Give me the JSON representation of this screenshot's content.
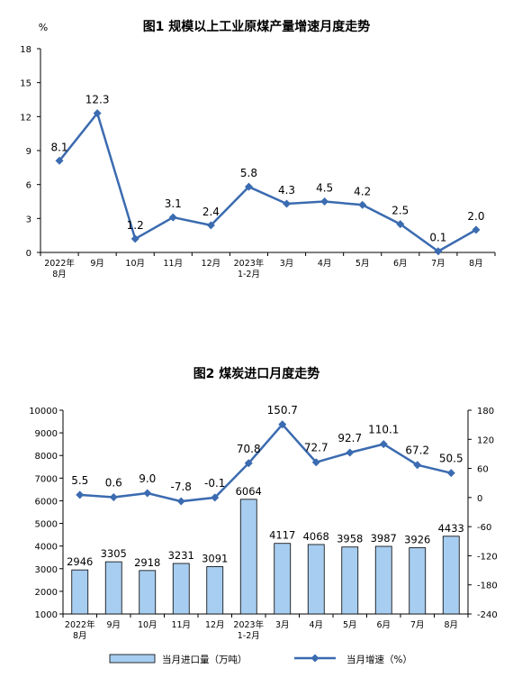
{
  "chart_data": [
    {
      "type": "line",
      "title": "图1  规模以上工业原煤产量增速月度走势",
      "ylabel": "%",
      "ylim": [
        0,
        18
      ],
      "yticks": [
        0,
        3,
        6,
        9,
        12,
        15,
        18
      ],
      "categories": [
        [
          "2022年",
          "8月"
        ],
        [
          "9月"
        ],
        [
          "10月"
        ],
        [
          "11月"
        ],
        [
          "12月"
        ],
        [
          "2023年",
          "1-2月"
        ],
        [
          "3月"
        ],
        [
          "4月"
        ],
        [
          "5月"
        ],
        [
          "6月"
        ],
        [
          "7月"
        ],
        [
          "8月"
        ]
      ],
      "series": [
        {
          "values": [
            8.1,
            12.3,
            1.2,
            3.1,
            2.4,
            5.8,
            4.3,
            4.5,
            4.2,
            2.5,
            0.1,
            2.0
          ],
          "labels": [
            "8.1",
            "12.3",
            "1.2",
            "3.1",
            "2.4",
            "5.8",
            "4.3",
            "4.5",
            "4.2",
            "2.5",
            "0.1",
            "2.0"
          ],
          "color": "#3b6bb0"
        }
      ],
      "grid": false
    },
    {
      "type": "bar",
      "title": "图2  煤炭进口月度走势",
      "ylim": [
        1000,
        10000
      ],
      "yticks": [
        1000,
        2000,
        3000,
        4000,
        5000,
        6000,
        7000,
        8000,
        9000,
        10000
      ],
      "y2lim": [
        -240,
        180
      ],
      "y2ticks": [
        -240,
        -180,
        -120,
        -60,
        0,
        60,
        120,
        180
      ],
      "categories": [
        [
          "2022年",
          "8月"
        ],
        [
          "9月"
        ],
        [
          "10月"
        ],
        [
          "11月"
        ],
        [
          "12月"
        ],
        [
          "2023年",
          "1-2月"
        ],
        [
          "3月"
        ],
        [
          "4月"
        ],
        [
          "5月"
        ],
        [
          "6月"
        ],
        [
          "7月"
        ],
        [
          "8月"
        ]
      ],
      "series": [
        {
          "name": "当月进口量（万吨）",
          "axis": "left",
          "type": "bar",
          "values": [
            2946,
            3305,
            2918,
            3231,
            3091,
            6064,
            4117,
            4068,
            3958,
            3987,
            3926,
            4433
          ],
          "labels": [
            "2946",
            "3305",
            "2918",
            "3231",
            "3091",
            "6064",
            "4117",
            "4068",
            "3958",
            "3987",
            "3926",
            "4433"
          ],
          "color": "#a7cdf0"
        },
        {
          "name": "当月增速（%）",
          "axis": "right",
          "type": "line",
          "values": [
            5.5,
            0.6,
            9.0,
            -7.8,
            -0.1,
            70.8,
            150.7,
            72.7,
            92.7,
            110.1,
            67.2,
            50.5
          ],
          "labels": [
            "5.5",
            "0.6",
            "9.0",
            "-7.8",
            "-0.1",
            "70.8",
            "150.7",
            "72.7",
            "92.7",
            "110.1",
            "67.2",
            "50.5"
          ],
          "color": "#3b6bb0"
        }
      ],
      "legend": "bottom",
      "grid": false
    }
  ]
}
